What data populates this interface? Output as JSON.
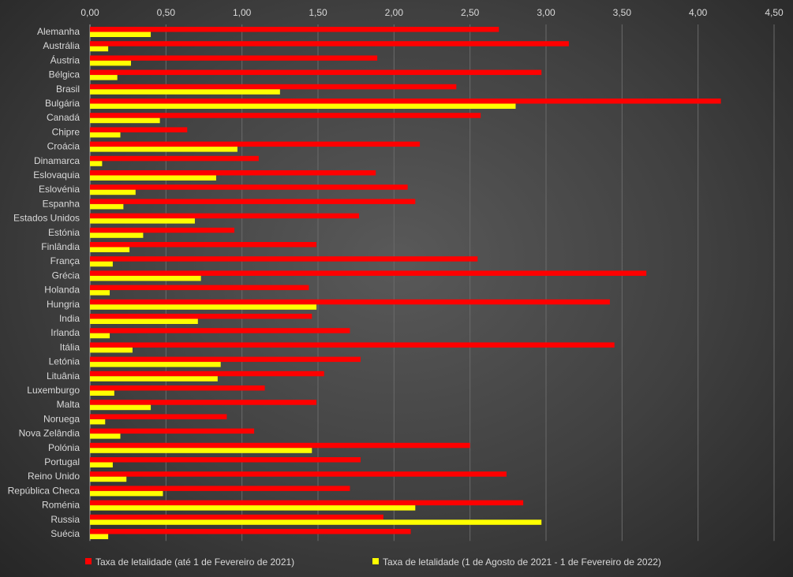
{
  "chart_data": {
    "type": "bar",
    "orientation": "horizontal",
    "categories": [
      "Alemanha",
      "Austrália",
      "Áustria",
      "Bélgica",
      "Brasil",
      "Bulgária",
      "Canadá",
      "Chipre",
      "Croácia",
      "Dinamarca",
      "Eslovaquia",
      "Eslovénia",
      "Espanha",
      "Estados Unidos",
      "Estónia",
      "Finlândia",
      "França",
      "Grécia",
      "Holanda",
      "Hungria",
      "India",
      "Irlanda",
      "Itália",
      "Letónia",
      "Lituânia",
      "Luxemburgo",
      "Malta",
      "Noruega",
      "Nova Zelândia",
      "Polónia",
      "Portugal",
      "Reino Unido",
      "República Checa",
      "Roménia",
      "Russia",
      "Suécia"
    ],
    "series": [
      {
        "name": "Taxa de letalidade (até 1 de Fevereiro de 2021)",
        "color": "#ff0000",
        "values": [
          2.69,
          3.15,
          1.89,
          2.97,
          2.41,
          4.15,
          2.57,
          0.64,
          2.17,
          1.11,
          1.88,
          2.09,
          2.14,
          1.77,
          0.95,
          1.49,
          2.55,
          3.66,
          1.44,
          3.42,
          1.46,
          1.71,
          3.45,
          1.78,
          1.54,
          1.15,
          1.49,
          0.9,
          1.08,
          2.5,
          1.78,
          2.74,
          1.71,
          2.85,
          1.93,
          2.11
        ]
      },
      {
        "name": "Taxa de letalidade (1 de Agosto de 2021 - 1 de Fevereiro de 2022)",
        "color": "#ffff00",
        "values": [
          0.4,
          0.12,
          0.27,
          0.18,
          1.25,
          2.8,
          0.46,
          0.2,
          0.97,
          0.08,
          0.83,
          0.3,
          0.22,
          0.69,
          0.35,
          0.26,
          0.15,
          0.73,
          0.13,
          1.49,
          0.71,
          0.13,
          0.28,
          0.86,
          0.84,
          0.16,
          0.4,
          0.1,
          0.2,
          1.46,
          0.15,
          0.24,
          0.48,
          2.14,
          2.97,
          0.12
        ]
      }
    ],
    "x_ticks": [
      "0,00",
      "0,50",
      "1,00",
      "1,50",
      "2,00",
      "2,50",
      "3,00",
      "3,50",
      "4,00",
      "4,50"
    ],
    "xlim": [
      0,
      4.5
    ],
    "x_axis_position": "top",
    "grid": true,
    "legend": "bottom",
    "title": "",
    "xlabel": "",
    "ylabel": ""
  }
}
